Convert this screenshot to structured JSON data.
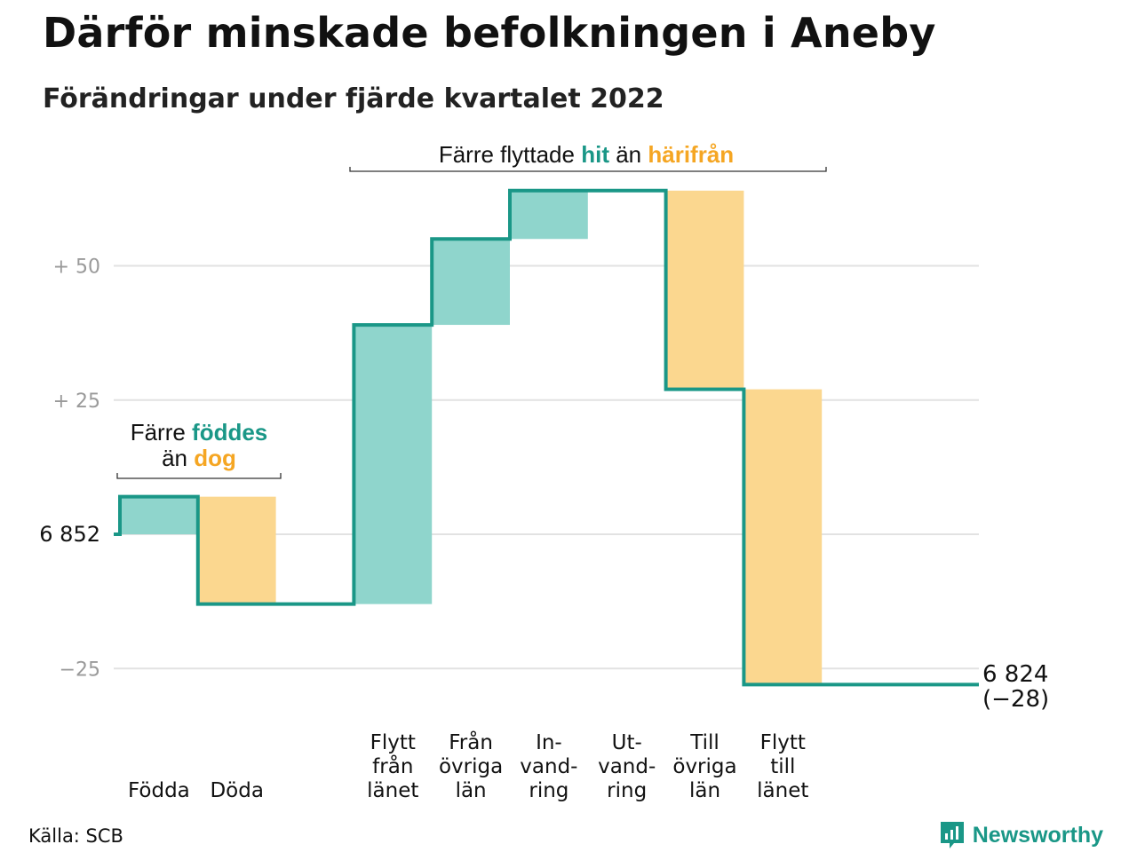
{
  "title": "Därför minskade befolkningen i Aneby",
  "subtitle": "Förändringar under fjärde kvartalet 2022",
  "source": "Källa: SCB",
  "brand": "Newsworthy",
  "colors": {
    "increase": "#8fd5cc",
    "decrease": "#fbd78f",
    "line": "#1a9787",
    "grid": "#e2e2e2",
    "green_text": "#1a9787",
    "orange_text": "#f5a623"
  },
  "annotations": {
    "births": {
      "line1_a": "Färre ",
      "line1_b": "föddes",
      "line2_a": "än ",
      "line2_b": "dog"
    },
    "moves": {
      "a": "Färre flyttade ",
      "b": "hit",
      "c": " än ",
      "d": "härifrån"
    }
  },
  "chart_data": {
    "type": "waterfall",
    "title": "Därför minskade befolkningen i Aneby",
    "subtitle": "Förändringar under fjärde kvartalet 2022",
    "base": 6852,
    "base_label": "6 852",
    "end": 6824,
    "end_label": "6 824",
    "end_change_label": "(−28)",
    "y_ticks": [
      {
        "value": 50,
        "label": "+ 50"
      },
      {
        "value": 25,
        "label": "+ 25"
      },
      {
        "value": 0,
        "label": "6 852"
      },
      {
        "value": -25,
        "label": "−25"
      }
    ],
    "ylim": [
      -30,
      65
    ],
    "grid": true,
    "steps": [
      {
        "label": [
          "Födda"
        ],
        "change": 7,
        "kind": "increase"
      },
      {
        "label": [
          "Döda"
        ],
        "change": -20,
        "kind": "decrease"
      },
      {
        "label": [],
        "change": 0,
        "kind": "spacer"
      },
      {
        "label": [
          "Flytt",
          "från",
          "länet"
        ],
        "change": 52,
        "kind": "increase"
      },
      {
        "label": [
          "Från",
          "övriga",
          "län"
        ],
        "change": 16,
        "kind": "increase"
      },
      {
        "label": [
          "In-",
          "vand-",
          "ring"
        ],
        "change": 9,
        "kind": "increase"
      },
      {
        "label": [
          "Ut-",
          "vand-",
          "ring"
        ],
        "change": 0,
        "kind": "decrease"
      },
      {
        "label": [
          "Till",
          "övriga",
          "län"
        ],
        "change": -37,
        "kind": "decrease"
      },
      {
        "label": [
          "Flytt",
          "till",
          "länet"
        ],
        "change": -55,
        "kind": "decrease"
      }
    ]
  }
}
